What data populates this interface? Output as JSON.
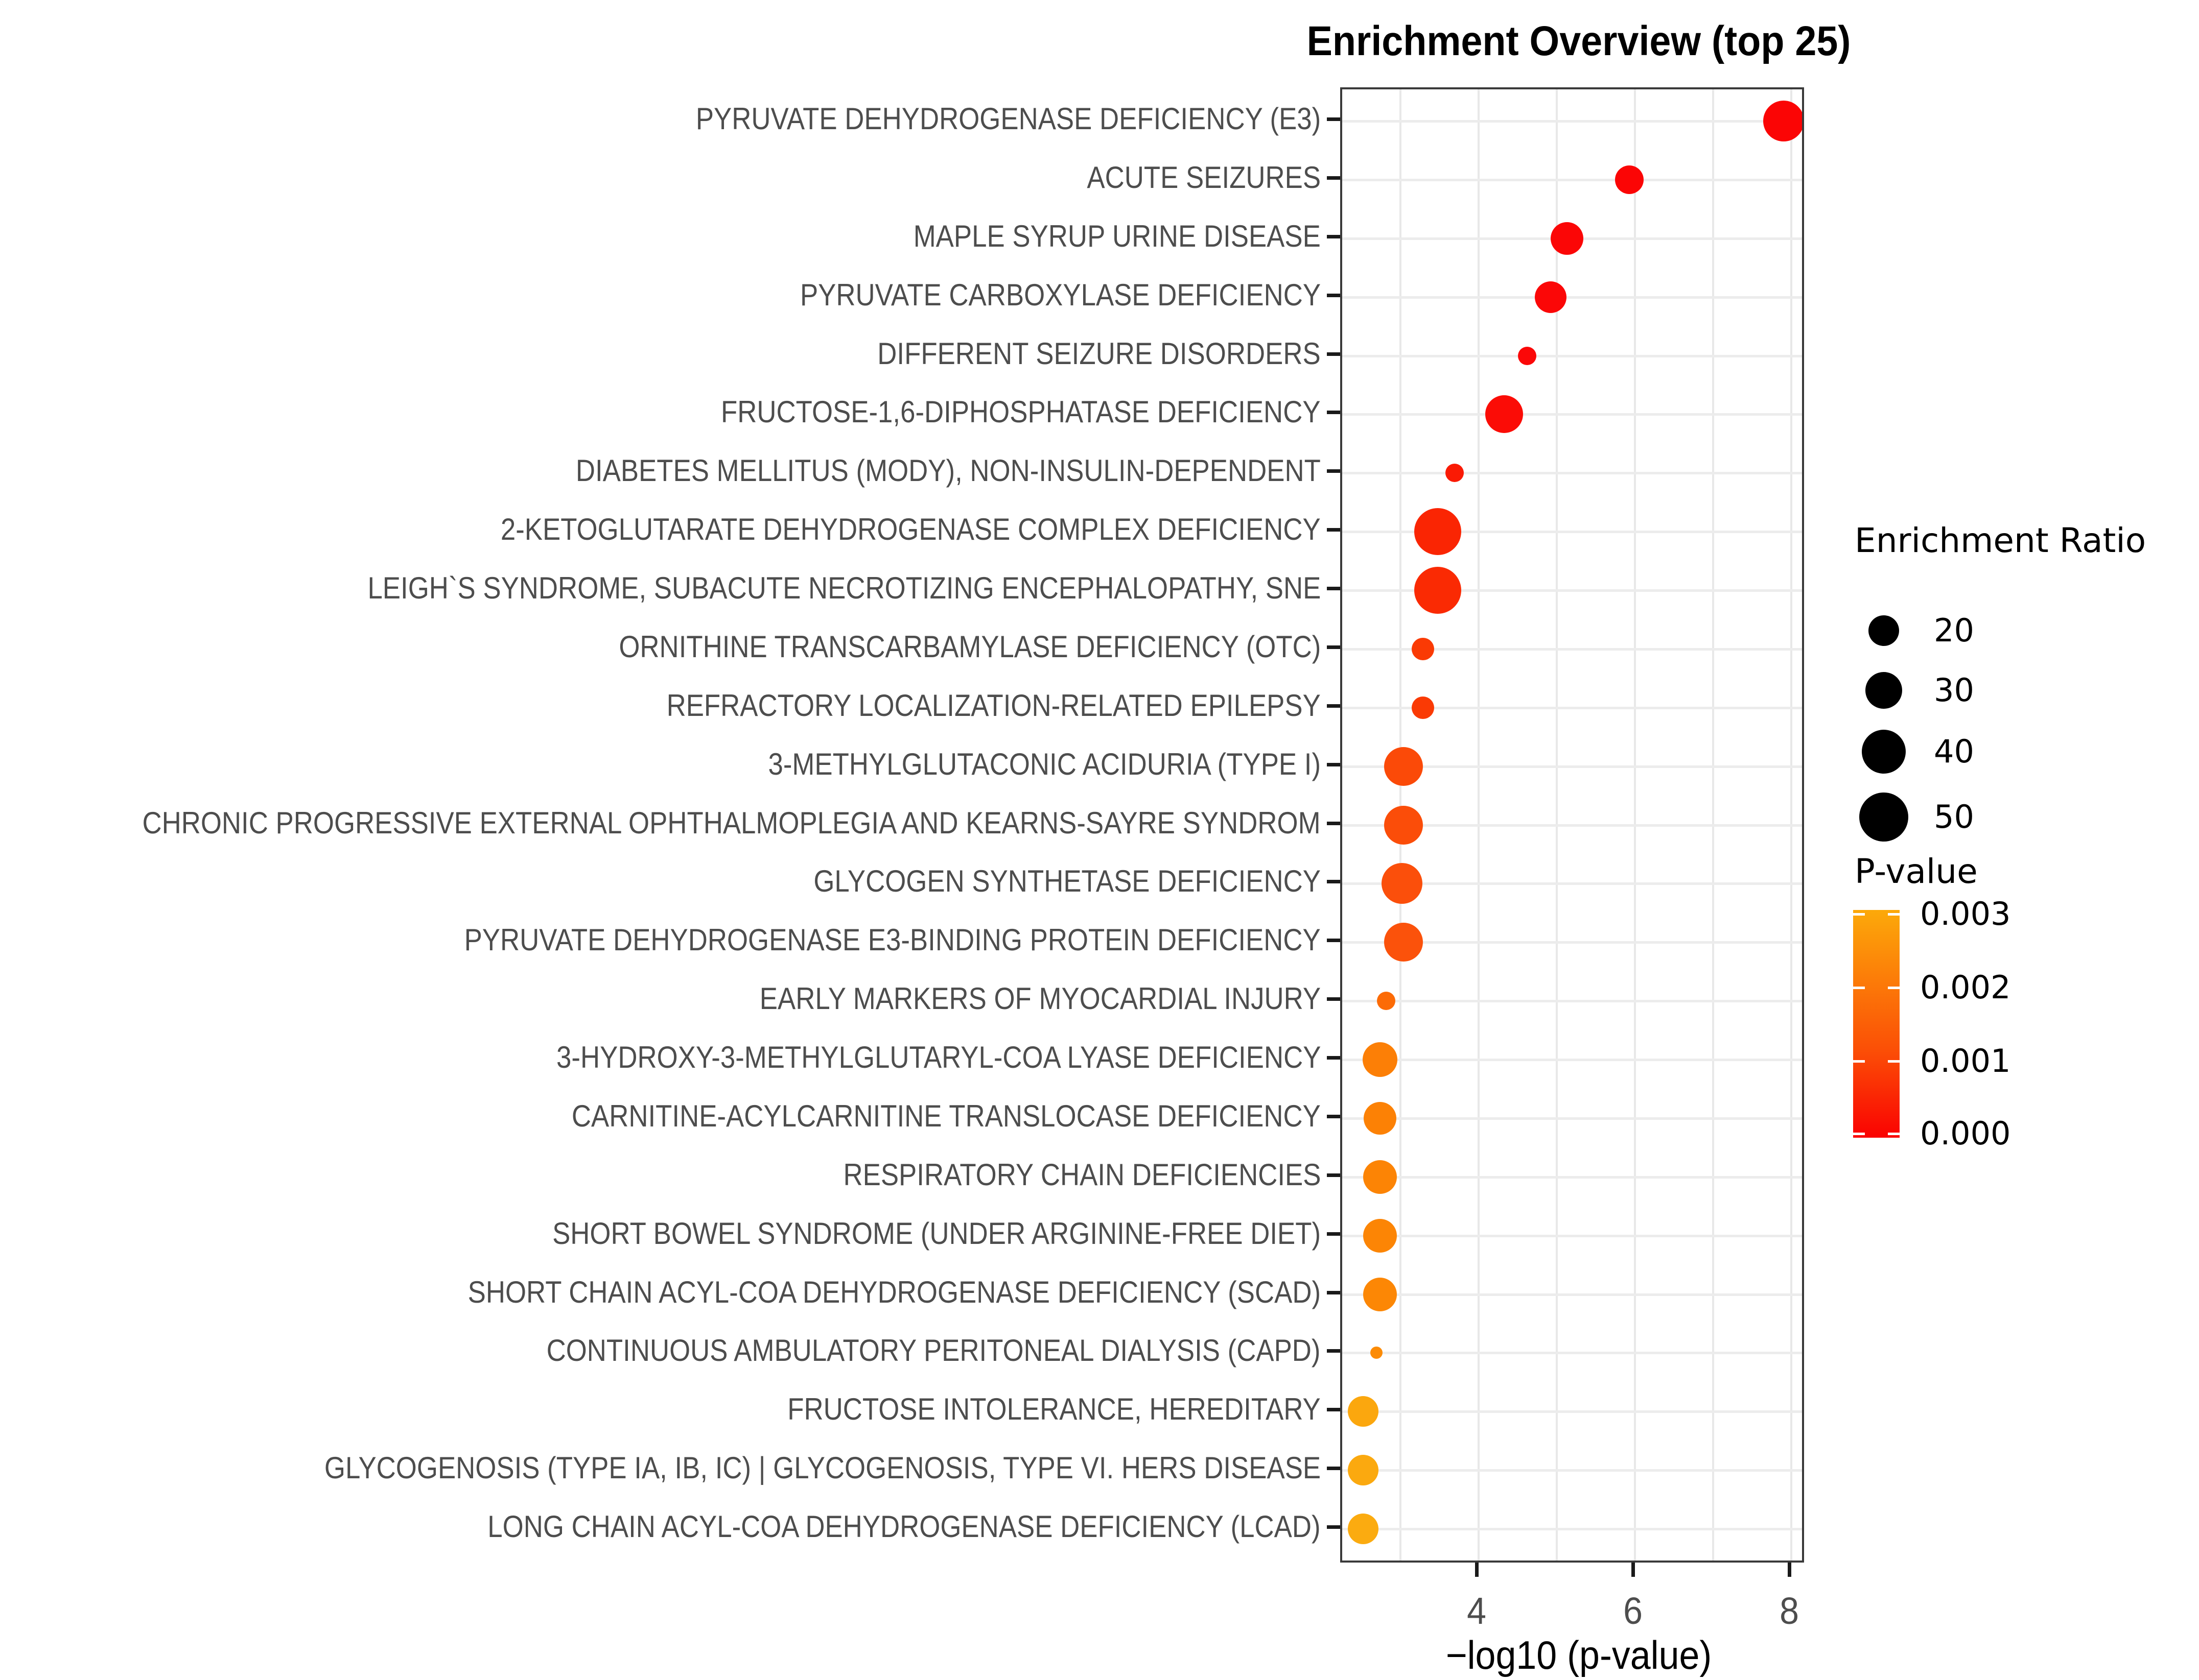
{
  "title": "Enrichment Overview (top 25)",
  "chart_data": {
    "type": "scatter",
    "title": "Enrichment Overview (top 25)",
    "xlabel": "−log10 (p-value)",
    "ylabel": "",
    "x_ticks": [
      4,
      6,
      8
    ],
    "x_gridlines": [
      3,
      4,
      5,
      6,
      7,
      8
    ],
    "xlim": [
      2.25,
      8.19
    ],
    "grid": true,
    "legend_position": "right",
    "size_legend": {
      "title": "Enrichment Ratio",
      "items": [
        {
          "label": "20",
          "radius_px": 30
        },
        {
          "label": "30",
          "radius_px": 36
        },
        {
          "label": "40",
          "radius_px": 43
        },
        {
          "label": "50",
          "radius_px": 48
        }
      ]
    },
    "color_legend": {
      "title": "P-value",
      "tick_labels": [
        "0.003",
        "0.002",
        "0.001",
        "0.000"
      ],
      "gradient_top": "#FCA90A",
      "gradient_mid": "#FB4E06",
      "gradient_bottom": "#FA0202"
    },
    "points": [
      {
        "label": "PYRUVATE DEHYDROGENASE DEFICIENCY (E3)",
        "x": 7.9,
        "enrichment_ratio": 35,
        "p_value": "1.3e-8",
        "radius_px": 40,
        "color": "#FB0505"
      },
      {
        "label": "ACUTE SEIZURES",
        "x": 5.93,
        "enrichment_ratio": 17,
        "p_value": "1.2e-6",
        "radius_px": 28,
        "color": "#FB0505"
      },
      {
        "label": "MAPLE SYRUP URINE DISEASE",
        "x": 5.13,
        "enrichment_ratio": 22,
        "p_value": "7.4e-6",
        "radius_px": 32,
        "color": "#FB0606"
      },
      {
        "label": "PYRUVATE CARBOXYLASE DEFICIENCY",
        "x": 4.92,
        "enrichment_ratio": 21,
        "p_value": "1.2e-5",
        "radius_px": 31,
        "color": "#FB0707"
      },
      {
        "label": "DIFFERENT SEIZURE DISORDERS",
        "x": 4.62,
        "enrichment_ratio": 7,
        "p_value": "2.4e-5",
        "radius_px": 18,
        "color": "#FB0808"
      },
      {
        "label": "FRUCTOSE-1,6-DIPHOSPHATASE DEFICIENCY",
        "x": 4.33,
        "enrichment_ratio": 30,
        "p_value": "4.7e-5",
        "radius_px": 37,
        "color": "#FB0C06"
      },
      {
        "label": "DIABETES MELLITUS (MODY), NON-INSULIN-DEPENDENT",
        "x": 3.69,
        "enrichment_ratio": 7,
        "p_value": "2.0e-4",
        "radius_px": 18,
        "color": "#FA1A04"
      },
      {
        "label": "2-KETOGLUTARATE DEHYDROGENASE COMPLEX DEFICIENCY",
        "x": 3.48,
        "enrichment_ratio": 46,
        "p_value": "3.3e-4",
        "radius_px": 46,
        "color": "#FA2503"
      },
      {
        "label": "LEIGH`S SYNDROME, SUBACUTE NECROTIZING ENCEPHALOPATHY, SNE",
        "x": 3.48,
        "enrichment_ratio": 46,
        "p_value": "3.3e-4",
        "radius_px": 46,
        "color": "#FA2A03"
      },
      {
        "label": "ORNITHINE TRANSCARBAMYLASE DEFICIENCY (OTC)",
        "x": 3.29,
        "enrichment_ratio": 11,
        "p_value": "5.1e-4",
        "radius_px": 22,
        "color": "#FA3A04"
      },
      {
        "label": "REFRACTORY LOCALIZATION-RELATED EPILEPSY",
        "x": 3.29,
        "enrichment_ratio": 11,
        "p_value": "5.1e-4",
        "radius_px": 22,
        "color": "#FA3A04"
      },
      {
        "label": "3-METHYLGLUTACONIC ACIDURIA (TYPE I)",
        "x": 3.04,
        "enrichment_ratio": 32,
        "p_value": "9.1e-4",
        "radius_px": 38,
        "color": "#FB4A08"
      },
      {
        "label": "CHRONIC PROGRESSIVE EXTERNAL OPHTHALMOPLEGIA AND KEARNS-SAYRE SYNDROM",
        "x": 3.04,
        "enrichment_ratio": 32,
        "p_value": "9.1e-4",
        "radius_px": 38,
        "color": "#FB4D09"
      },
      {
        "label": "GLYCOGEN SYNTHETASE DEFICIENCY",
        "x": 3.02,
        "enrichment_ratio": 35,
        "p_value": "9.5e-4",
        "radius_px": 40,
        "color": "#FB4F0B"
      },
      {
        "label": "PYRUVATE DEHYDROGENASE E3-BINDING PROTEIN DEFICIENCY",
        "x": 3.04,
        "enrichment_ratio": 32,
        "p_value": "9.1e-4",
        "radius_px": 38,
        "color": "#FB520B"
      },
      {
        "label": "EARLY MARKERS OF MYOCARDIAL INJURY",
        "x": 2.82,
        "enrichment_ratio": 7,
        "p_value": "1.5e-3",
        "radius_px": 18,
        "color": "#FC6B06"
      },
      {
        "label": "3-HYDROXY-3-METHYLGLUTARYL-COA LYASE DEFICIENCY",
        "x": 2.74,
        "enrichment_ratio": 25,
        "p_value": "1.8e-3",
        "radius_px": 34,
        "color": "#FC7F06"
      },
      {
        "label": "CARNITINE-ACYLCARNITINE TRANSLOCASE DEFICIENCY",
        "x": 2.74,
        "enrichment_ratio": 22,
        "p_value": "1.8e-3",
        "radius_px": 32,
        "color": "#FC8105"
      },
      {
        "label": "RESPIRATORY CHAIN DEFICIENCIES",
        "x": 2.74,
        "enrichment_ratio": 24,
        "p_value": "1.8e-3",
        "radius_px": 33,
        "color": "#FC8405"
      },
      {
        "label": "SHORT BOWEL SYNDROME (UNDER ARGININE-FREE DIET)",
        "x": 2.74,
        "enrichment_ratio": 24,
        "p_value": "1.8e-3",
        "radius_px": 33,
        "color": "#FC8505"
      },
      {
        "label": "SHORT CHAIN ACYL-COA DEHYDROGENASE DEFICIENCY (SCAD)",
        "x": 2.74,
        "enrichment_ratio": 24,
        "p_value": "1.8e-3",
        "radius_px": 33,
        "color": "#FC8705"
      },
      {
        "label": "CONTINUOUS AMBULATORY PERITONEAL DIALYSIS (CAPD)",
        "x": 2.69,
        "enrichment_ratio": 3,
        "p_value": "2.0e-3",
        "radius_px": 12,
        "color": "#FC8B05"
      },
      {
        "label": "FRUCTOSE INTOLERANCE, HEREDITARY",
        "x": 2.52,
        "enrichment_ratio": 20,
        "p_value": "3.0e-3",
        "radius_px": 30,
        "color": "#FBA70E"
      },
      {
        "label": "GLYCOGENOSIS (TYPE IA, IB, IC) | GLYCOGENOSIS, TYPE VI. HERS DISEASE",
        "x": 2.52,
        "enrichment_ratio": 20,
        "p_value": "3.0e-3",
        "radius_px": 30,
        "color": "#FBA90F"
      },
      {
        "label": "LONG CHAIN ACYL-COA DEHYDROGENASE DEFICIENCY (LCAD)",
        "x": 2.52,
        "enrichment_ratio": 20,
        "p_value": "3.0e-3",
        "radius_px": 30,
        "color": "#FBAB10"
      }
    ]
  }
}
